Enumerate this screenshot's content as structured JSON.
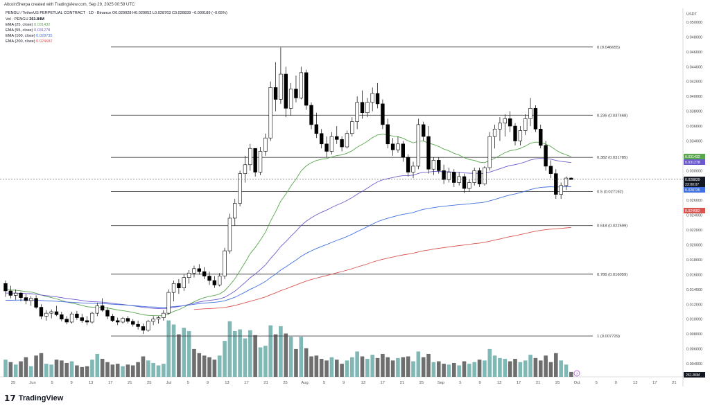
{
  "header": {
    "text": "AltcoinSherpa created with TradingView.com, Sep 29, 2025 00:59 UTC"
  },
  "legend": {
    "symbol": "PENGU / TetherUS PERPETUAL CONTRACT · 1D · Binance",
    "ohlc": "O0.029028 H0.029052 L0.028763 C0.028839 −0.000189 (−0.65%)",
    "vol_label": "Vol · PENGU",
    "vol_value": "261.84M",
    "ema25_label": "EMA (25, close)",
    "ema25_value": "0.031432",
    "ema55_label": "EMA (55, close)",
    "ema55_value": "0.031278",
    "ema100_label": "EMA (100, close)",
    "ema100_value": "0.028735",
    "ema200_label": "EMA (200, close)",
    "ema200_value": "0.024682"
  },
  "colors": {
    "up": "#ffffff",
    "down": "#000000",
    "wick": "#000000",
    "vol_up": "#7fb8b5",
    "vol_down": "#6e6e6e",
    "ema25": "#5aa64f",
    "ema55": "#6a5acd",
    "ema100": "#3f6fe0",
    "ema200": "#d9534f",
    "fib": "#444444"
  },
  "footer": {
    "brand": "TradingView"
  },
  "chart_data": {
    "type": "candlestick",
    "price_unit": "USDT",
    "ylim": [
      0.0,
      0.05
    ],
    "y_ticks": [
      "0.050000",
      "0.048000",
      "0.046000",
      "0.044000",
      "0.042000",
      "0.040000",
      "0.038000",
      "0.036000",
      "0.034000",
      "0.032000",
      "0.030000",
      "0.028000",
      "0.026000",
      "0.024000",
      "0.022000",
      "0.020000",
      "0.018000",
      "0.016000",
      "0.014000",
      "0.012000",
      "0.010000",
      "0.008000",
      "0.006000",
      "0.004000"
    ],
    "x_ticks": [
      "25",
      "Jun",
      "5",
      "9",
      "13",
      "17",
      "21",
      "25",
      "Jul",
      "5",
      "9",
      "13",
      "17",
      "21",
      "25",
      "Aug",
      "5",
      "9",
      "13",
      "17",
      "21",
      "25",
      "Sep",
      "5",
      "9",
      "13",
      "17",
      "21",
      "25",
      "Oct",
      "5",
      "9",
      "13",
      "17",
      "21"
    ],
    "fib_levels": [
      {
        "label": "0 (0.046655)",
        "value": 0.046655
      },
      {
        "label": "0.236 (0.037468)",
        "value": 0.037468
      },
      {
        "label": "0.382 (0.031785)",
        "value": 0.031785
      },
      {
        "label": "0.5 (0.027192)",
        "value": 0.027192
      },
      {
        "label": "0.618 (0.022599)",
        "value": 0.022599
      },
      {
        "label": "0.786 (0.016059)",
        "value": 0.016059
      },
      {
        "label": "1 (0.007729)",
        "value": 0.007729
      }
    ],
    "last_price_tag": {
      "value": "0.028839",
      "time": "23:00:07"
    },
    "ema_tags": [
      {
        "value": "0.031432",
        "color": "#5aa64f"
      },
      {
        "value": "0.031278",
        "color": "#6a5acd"
      },
      {
        "value": "0.028735",
        "color": "#3f6fe0"
      },
      {
        "value": "0.024682",
        "color": "#d9534f"
      }
    ],
    "volume_tag": "261.84M",
    "candles": [
      [
        0.0148,
        0.0152,
        0.013,
        0.0138
      ],
      [
        0.0138,
        0.0145,
        0.0128,
        0.0132
      ],
      [
        0.0132,
        0.014,
        0.0126,
        0.0135
      ],
      [
        0.0135,
        0.0137,
        0.0124,
        0.0129
      ],
      [
        0.0129,
        0.0134,
        0.012,
        0.0125
      ],
      [
        0.0125,
        0.0131,
        0.0118,
        0.0128
      ],
      [
        0.0128,
        0.0132,
        0.0114,
        0.0116
      ],
      [
        0.0116,
        0.012,
        0.01,
        0.0104
      ],
      [
        0.0104,
        0.0112,
        0.0098,
        0.0108
      ],
      [
        0.0108,
        0.0113,
        0.0101,
        0.011
      ],
      [
        0.011,
        0.0118,
        0.0104,
        0.0106
      ],
      [
        0.0106,
        0.011,
        0.0097,
        0.01
      ],
      [
        0.01,
        0.0104,
        0.0093,
        0.0096
      ],
      [
        0.0096,
        0.011,
        0.0094,
        0.0107
      ],
      [
        0.0107,
        0.0111,
        0.0099,
        0.0102
      ],
      [
        0.0102,
        0.0107,
        0.0095,
        0.0098
      ],
      [
        0.0098,
        0.0104,
        0.0092,
        0.0096
      ],
      [
        0.0096,
        0.011,
        0.0094,
        0.0108
      ],
      [
        0.0108,
        0.0122,
        0.0104,
        0.0118
      ],
      [
        0.0118,
        0.0128,
        0.011,
        0.0112
      ],
      [
        0.0112,
        0.0116,
        0.01,
        0.0104
      ],
      [
        0.0104,
        0.0107,
        0.0096,
        0.0098
      ],
      [
        0.0098,
        0.0102,
        0.0092,
        0.0096
      ],
      [
        0.0096,
        0.0103,
        0.0094,
        0.0101
      ],
      [
        0.0101,
        0.0104,
        0.0094,
        0.0097
      ],
      [
        0.0097,
        0.01,
        0.009,
        0.0093
      ],
      [
        0.0093,
        0.0098,
        0.0086,
        0.009
      ],
      [
        0.009,
        0.0094,
        0.008,
        0.0085
      ],
      [
        0.0085,
        0.0099,
        0.0083,
        0.0097
      ],
      [
        0.0097,
        0.0104,
        0.0092,
        0.01
      ],
      [
        0.01,
        0.0104,
        0.0094,
        0.0102
      ],
      [
        0.0102,
        0.0112,
        0.0098,
        0.0108
      ],
      [
        0.0108,
        0.014,
        0.0106,
        0.0136
      ],
      [
        0.0136,
        0.0152,
        0.0124,
        0.0148
      ],
      [
        0.0148,
        0.0154,
        0.0134,
        0.0142
      ],
      [
        0.0142,
        0.016,
        0.0138,
        0.0156
      ],
      [
        0.0156,
        0.0166,
        0.0148,
        0.0162
      ],
      [
        0.0162,
        0.0172,
        0.0156,
        0.0168
      ],
      [
        0.0168,
        0.0174,
        0.016,
        0.0164
      ],
      [
        0.0164,
        0.017,
        0.0154,
        0.0158
      ],
      [
        0.0158,
        0.0164,
        0.0146,
        0.0152
      ],
      [
        0.0152,
        0.0158,
        0.0142,
        0.0146
      ],
      [
        0.0146,
        0.0162,
        0.0144,
        0.0158
      ],
      [
        0.0158,
        0.0196,
        0.0154,
        0.0192
      ],
      [
        0.0192,
        0.0242,
        0.0188,
        0.0236
      ],
      [
        0.0236,
        0.0262,
        0.0226,
        0.0256
      ],
      [
        0.0256,
        0.03,
        0.0252,
        0.0296
      ],
      [
        0.0296,
        0.032,
        0.0284,
        0.0308
      ],
      [
        0.0308,
        0.0336,
        0.03,
        0.033
      ],
      [
        0.033,
        0.033,
        0.0292,
        0.0298
      ],
      [
        0.0298,
        0.0332,
        0.0294,
        0.0326
      ],
      [
        0.0326,
        0.035,
        0.032,
        0.0344
      ],
      [
        0.0344,
        0.042,
        0.034,
        0.0412
      ],
      [
        0.0412,
        0.0446,
        0.038,
        0.0396
      ],
      [
        0.0396,
        0.0466,
        0.039,
        0.043
      ],
      [
        0.043,
        0.044,
        0.0372,
        0.0384
      ],
      [
        0.0384,
        0.0418,
        0.0374,
        0.041
      ],
      [
        0.041,
        0.0428,
        0.0392,
        0.0398
      ],
      [
        0.0398,
        0.044,
        0.0396,
        0.0432
      ],
      [
        0.0432,
        0.0436,
        0.0382,
        0.0388
      ],
      [
        0.0388,
        0.0392,
        0.0356,
        0.0362
      ],
      [
        0.0362,
        0.0378,
        0.0344,
        0.035
      ],
      [
        0.035,
        0.0356,
        0.033,
        0.0336
      ],
      [
        0.0336,
        0.0346,
        0.0318,
        0.0326
      ],
      [
        0.0326,
        0.0352,
        0.0322,
        0.0346
      ],
      [
        0.0346,
        0.036,
        0.0336,
        0.0342
      ],
      [
        0.0342,
        0.0346,
        0.0326,
        0.0332
      ],
      [
        0.0332,
        0.0354,
        0.033,
        0.035
      ],
      [
        0.035,
        0.0372,
        0.0346,
        0.0366
      ],
      [
        0.0366,
        0.04,
        0.0356,
        0.0392
      ],
      [
        0.0392,
        0.0408,
        0.037,
        0.0378
      ],
      [
        0.0378,
        0.0398,
        0.0372,
        0.0392
      ],
      [
        0.0392,
        0.0412,
        0.038,
        0.0404
      ],
      [
        0.0404,
        0.0418,
        0.0384,
        0.039
      ],
      [
        0.039,
        0.0396,
        0.0356,
        0.0362
      ],
      [
        0.0362,
        0.037,
        0.033,
        0.0336
      ],
      [
        0.0336,
        0.0344,
        0.032,
        0.0328
      ],
      [
        0.0328,
        0.0346,
        0.0324,
        0.0336
      ],
      [
        0.0336,
        0.034,
        0.0312,
        0.0318
      ],
      [
        0.0318,
        0.0322,
        0.0292,
        0.0298
      ],
      [
        0.0298,
        0.0312,
        0.029,
        0.0306
      ],
      [
        0.0306,
        0.037,
        0.0302,
        0.0362
      ],
      [
        0.0362,
        0.0366,
        0.034,
        0.0346
      ],
      [
        0.0346,
        0.036,
        0.0296,
        0.0302
      ],
      [
        0.0302,
        0.0318,
        0.0294,
        0.0314
      ],
      [
        0.0314,
        0.0318,
        0.0296,
        0.03
      ],
      [
        0.03,
        0.0308,
        0.0282,
        0.0288
      ],
      [
        0.0288,
        0.0304,
        0.0284,
        0.0298
      ],
      [
        0.0298,
        0.0302,
        0.0278,
        0.0284
      ],
      [
        0.0284,
        0.0298,
        0.028,
        0.0292
      ],
      [
        0.0292,
        0.0296,
        0.027,
        0.0276
      ],
      [
        0.0276,
        0.0288,
        0.0272,
        0.0284
      ],
      [
        0.0284,
        0.0304,
        0.028,
        0.03
      ],
      [
        0.03,
        0.0304,
        0.0278,
        0.0282
      ],
      [
        0.0282,
        0.0306,
        0.028,
        0.0304
      ],
      [
        0.0304,
        0.0352,
        0.03,
        0.0346
      ],
      [
        0.0346,
        0.0362,
        0.033,
        0.0356
      ],
      [
        0.0356,
        0.0372,
        0.034,
        0.0364
      ],
      [
        0.0364,
        0.0376,
        0.0346,
        0.037
      ],
      [
        0.037,
        0.038,
        0.0352,
        0.036
      ],
      [
        0.036,
        0.0364,
        0.0334,
        0.034
      ],
      [
        0.034,
        0.036,
        0.0334,
        0.0354
      ],
      [
        0.0354,
        0.0376,
        0.0348,
        0.037
      ],
      [
        0.037,
        0.0398,
        0.036,
        0.0384
      ],
      [
        0.0384,
        0.0388,
        0.0352,
        0.0356
      ],
      [
        0.0356,
        0.0362,
        0.033,
        0.0334
      ],
      [
        0.0334,
        0.034,
        0.03,
        0.0306
      ],
      [
        0.0306,
        0.0314,
        0.029,
        0.0296
      ],
      [
        0.0296,
        0.0302,
        0.0262,
        0.0268
      ],
      [
        0.0268,
        0.0284,
        0.0262,
        0.028
      ],
      [
        0.028,
        0.0292,
        0.0274,
        0.029
      ],
      [
        0.029,
        0.0291,
        0.0288,
        0.0288
      ]
    ],
    "volumes": [
      [
        2.1,
        0
      ],
      [
        1.8,
        1
      ],
      [
        1.5,
        0
      ],
      [
        1.9,
        1
      ],
      [
        2.4,
        1
      ],
      [
        1.3,
        0
      ],
      [
        2.6,
        1
      ],
      [
        2.9,
        1
      ],
      [
        1.6,
        0
      ],
      [
        1.5,
        0
      ],
      [
        2.1,
        1
      ],
      [
        2.0,
        1
      ],
      [
        1.7,
        1
      ],
      [
        1.9,
        0
      ],
      [
        1.4,
        1
      ],
      [
        1.2,
        1
      ],
      [
        1.3,
        1
      ],
      [
        2.1,
        0
      ],
      [
        2.8,
        0
      ],
      [
        2.2,
        1
      ],
      [
        1.8,
        1
      ],
      [
        1.5,
        1
      ],
      [
        1.6,
        1
      ],
      [
        1.3,
        0
      ],
      [
        1.5,
        1
      ],
      [
        1.4,
        1
      ],
      [
        1.8,
        1
      ],
      [
        2.5,
        1
      ],
      [
        2.0,
        0
      ],
      [
        1.7,
        0
      ],
      [
        1.4,
        0
      ],
      [
        1.6,
        0
      ],
      [
        6.9,
        0
      ],
      [
        6.4,
        0
      ],
      [
        5.2,
        1
      ],
      [
        6.0,
        0
      ],
      [
        5.6,
        0
      ],
      [
        3.4,
        1
      ],
      [
        2.9,
        1
      ],
      [
        2.6,
        1
      ],
      [
        2.4,
        1
      ],
      [
        2.1,
        1
      ],
      [
        2.6,
        0
      ],
      [
        4.4,
        0
      ],
      [
        6.8,
        0
      ],
      [
        5.6,
        0
      ],
      [
        5.8,
        0
      ],
      [
        4.7,
        0
      ],
      [
        5.7,
        0
      ],
      [
        5.1,
        1
      ],
      [
        3.6,
        0
      ],
      [
        3.8,
        0
      ],
      [
        6.3,
        0
      ],
      [
        5.2,
        1
      ],
      [
        6.2,
        0
      ],
      [
        5.3,
        1
      ],
      [
        4.9,
        0
      ],
      [
        3.4,
        1
      ],
      [
        4.9,
        0
      ],
      [
        3.5,
        1
      ],
      [
        2.5,
        1
      ],
      [
        2.6,
        1
      ],
      [
        2.2,
        1
      ],
      [
        2.0,
        1
      ],
      [
        2.4,
        0
      ],
      [
        2.1,
        1
      ],
      [
        1.6,
        1
      ],
      [
        2.0,
        0
      ],
      [
        2.4,
        0
      ],
      [
        3.1,
        0
      ],
      [
        2.5,
        1
      ],
      [
        2.2,
        0
      ],
      [
        2.7,
        0
      ],
      [
        2.3,
        1
      ],
      [
        2.8,
        1
      ],
      [
        2.4,
        1
      ],
      [
        2.0,
        1
      ],
      [
        2.3,
        0
      ],
      [
        2.4,
        1
      ],
      [
        2.5,
        1
      ],
      [
        1.9,
        0
      ],
      [
        3.1,
        0
      ],
      [
        2.4,
        1
      ],
      [
        2.8,
        1
      ],
      [
        1.8,
        0
      ],
      [
        1.9,
        1
      ],
      [
        1.6,
        1
      ],
      [
        1.5,
        0
      ],
      [
        1.7,
        1
      ],
      [
        1.4,
        0
      ],
      [
        1.9,
        1
      ],
      [
        1.6,
        0
      ],
      [
        1.8,
        0
      ],
      [
        2.1,
        1
      ],
      [
        2.0,
        0
      ],
      [
        3.4,
        0
      ],
      [
        2.6,
        0
      ],
      [
        2.3,
        0
      ],
      [
        2.2,
        0
      ],
      [
        1.9,
        1
      ],
      [
        2.2,
        1
      ],
      [
        1.8,
        0
      ],
      [
        2.0,
        0
      ],
      [
        2.7,
        0
      ],
      [
        2.3,
        1
      ],
      [
        2.0,
        1
      ],
      [
        2.6,
        1
      ],
      [
        1.8,
        1
      ],
      [
        2.9,
        1
      ],
      [
        2.0,
        0
      ],
      [
        1.5,
        0
      ],
      [
        0.6,
        1
      ]
    ]
  }
}
